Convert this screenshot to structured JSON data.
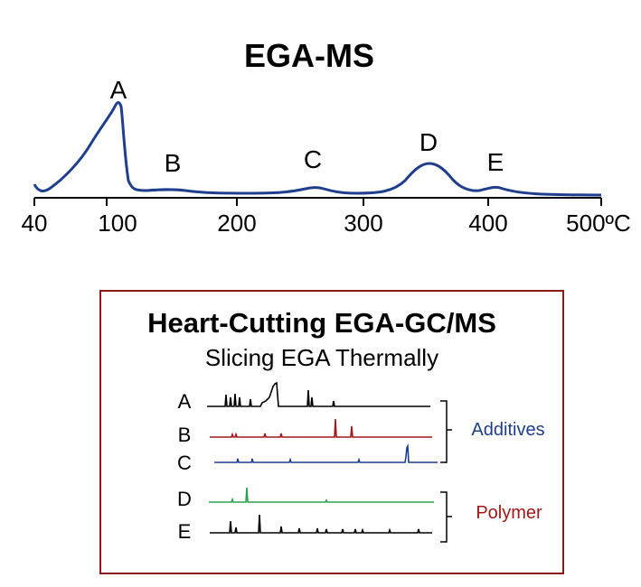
{
  "ega_ms": {
    "title": "EGA-MS",
    "x_ticks": [
      "40",
      "100",
      "200",
      "300",
      "400",
      "500ºC"
    ],
    "peak_labels": [
      "A",
      "B",
      "C",
      "D",
      "E"
    ],
    "line_color": "#1f3f8c"
  },
  "heart_cutting": {
    "title": "Heart-Cutting EGA-GC/MS",
    "subtitle": "Slicing EGA Thermally",
    "frame_color": "#8b1a1a",
    "traces": [
      {
        "label": "A",
        "color": "#000000"
      },
      {
        "label": "B",
        "color": "#a01818"
      },
      {
        "label": "C",
        "color": "#1f3f8c"
      },
      {
        "label": "D",
        "color": "#2aa050"
      },
      {
        "label": "E",
        "color": "#000000"
      }
    ],
    "groups": [
      {
        "label": "Additives",
        "color": "#1f3f8c"
      },
      {
        "label": "Polymer",
        "color": "#a01818"
      }
    ]
  }
}
